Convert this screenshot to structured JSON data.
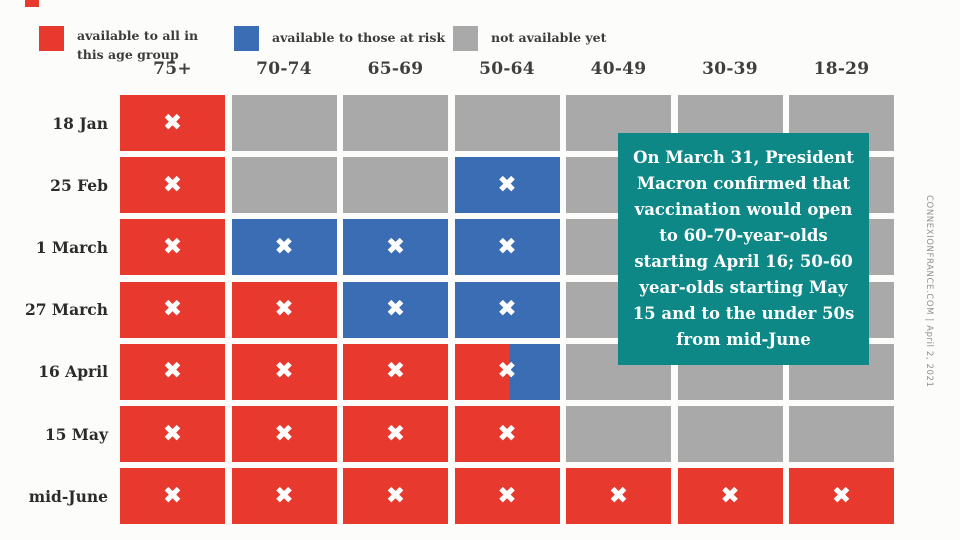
{
  "colors": {
    "red": "#e8392f",
    "blue": "#3a6db4",
    "gray": "#a9a9a9",
    "teal": "#0e8787",
    "background": "#fcfcfa",
    "corner_mark": "#e8392f"
  },
  "legend": {
    "items": [
      {
        "color": "red",
        "label": "available to all in this age group"
      },
      {
        "color": "blue",
        "label": "available to those at risk"
      },
      {
        "color": "gray",
        "label": "not available yet"
      }
    ]
  },
  "chart_data": {
    "type": "heatmap",
    "title": "",
    "columns": [
      "75+",
      "70-74",
      "65-69",
      "50-64",
      "40-49",
      "30-39",
      "18-29"
    ],
    "rows": [
      "18 Jan",
      "25 Feb",
      "1 March",
      "27 March",
      "16 April",
      "15 May",
      "mid-June"
    ],
    "legend_position": "top",
    "value_meanings": {
      "red": "available to all in this age group",
      "blue": "available to those at risk",
      "gray": "not available yet",
      "split": "partially available to all / at risk"
    },
    "cells": [
      [
        "red",
        "gray",
        "gray",
        "gray",
        "gray",
        "gray",
        "gray"
      ],
      [
        "red",
        "gray",
        "gray",
        "blue",
        "gray",
        "gray",
        "gray"
      ],
      [
        "red",
        "blue",
        "blue",
        "blue",
        "gray",
        "gray",
        "gray"
      ],
      [
        "red",
        "red",
        "blue",
        "blue",
        "gray",
        "gray",
        "gray"
      ],
      [
        "red",
        "red",
        "red",
        "split",
        "gray",
        "gray",
        "gray"
      ],
      [
        "red",
        "red",
        "red",
        "red",
        "gray",
        "gray",
        "gray"
      ],
      [
        "red",
        "red",
        "red",
        "red",
        "red",
        "red",
        "red"
      ]
    ],
    "x_mark_glyph": "✖",
    "split_fraction": 0.52
  },
  "callout": {
    "text": "On March 31, President Macron confirmed that vaccination would open to 60-70-year-olds starting April 16; 50-60 year-olds starting May 15 and to the under 50s from mid-June"
  },
  "credit": "CONNEXIONFRANCE.COM | April 2, 2021"
}
